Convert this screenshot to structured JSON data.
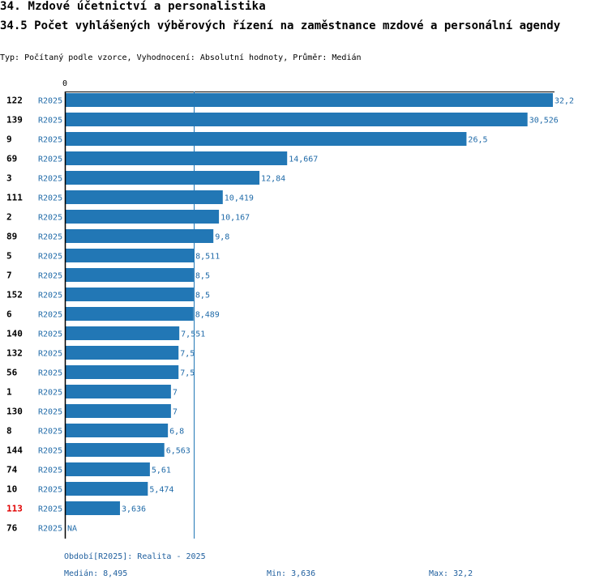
{
  "header": {
    "title": "34. Mzdové účetnictví a personalistika",
    "subtitle": "34.5 Počet vyhlášených výběrových řízení na zaměstnance mzdové a personální agendy",
    "type_line": "Typ: Počítaný podle vzorce, Vyhodnocení: Absolutní hodnoty, Průměr: Medián"
  },
  "colors": {
    "bar": "#2277b5",
    "value_text": "#1f6aa8",
    "highlight": "#e00000",
    "axis": "#000000",
    "median_line": "#2277b5"
  },
  "chart_data": {
    "type": "bar",
    "orientation": "horizontal",
    "axis_zero_label": "0",
    "xlim": [
      0,
      32.2
    ],
    "median": 8.495,
    "rows": [
      {
        "id": "122",
        "period": "R2025",
        "value": 32.2,
        "label": "32,2"
      },
      {
        "id": "139",
        "period": "R2025",
        "value": 30.526,
        "label": "30,526"
      },
      {
        "id": "9",
        "period": "R2025",
        "value": 26.5,
        "label": "26,5"
      },
      {
        "id": "69",
        "period": "R2025",
        "value": 14.667,
        "label": "14,667"
      },
      {
        "id": "3",
        "period": "R2025",
        "value": 12.84,
        "label": "12,84"
      },
      {
        "id": "111",
        "period": "R2025",
        "value": 10.419,
        "label": "10,419"
      },
      {
        "id": "2",
        "period": "R2025",
        "value": 10.167,
        "label": "10,167"
      },
      {
        "id": "89",
        "period": "R2025",
        "value": 9.8,
        "label": "9,8"
      },
      {
        "id": "5",
        "period": "R2025",
        "value": 8.511,
        "label": "8,511"
      },
      {
        "id": "7",
        "period": "R2025",
        "value": 8.5,
        "label": "8,5"
      },
      {
        "id": "152",
        "period": "R2025",
        "value": 8.5,
        "label": "8,5"
      },
      {
        "id": "6",
        "period": "R2025",
        "value": 8.489,
        "label": "8,489"
      },
      {
        "id": "140",
        "period": "R2025",
        "value": 7.551,
        "label": "7,551"
      },
      {
        "id": "132",
        "period": "R2025",
        "value": 7.5,
        "label": "7,5"
      },
      {
        "id": "56",
        "period": "R2025",
        "value": 7.5,
        "label": "7,5"
      },
      {
        "id": "1",
        "period": "R2025",
        "value": 7,
        "label": "7"
      },
      {
        "id": "130",
        "period": "R2025",
        "value": 7,
        "label": "7"
      },
      {
        "id": "8",
        "period": "R2025",
        "value": 6.8,
        "label": "6,8"
      },
      {
        "id": "144",
        "period": "R2025",
        "value": 6.563,
        "label": "6,563"
      },
      {
        "id": "74",
        "period": "R2025",
        "value": 5.61,
        "label": "5,61"
      },
      {
        "id": "10",
        "period": "R2025",
        "value": 5.474,
        "label": "5,474"
      },
      {
        "id": "113",
        "period": "R2025",
        "value": 3.636,
        "label": "3,636",
        "highlight": true
      },
      {
        "id": "76",
        "period": "R2025",
        "value": null,
        "label": "NA"
      }
    ]
  },
  "footer": {
    "period": "Období[R2025]: Realita - 2025",
    "median": "Medián: 8,495",
    "min": "Min: 3,636",
    "max": "Max: 32,2"
  }
}
